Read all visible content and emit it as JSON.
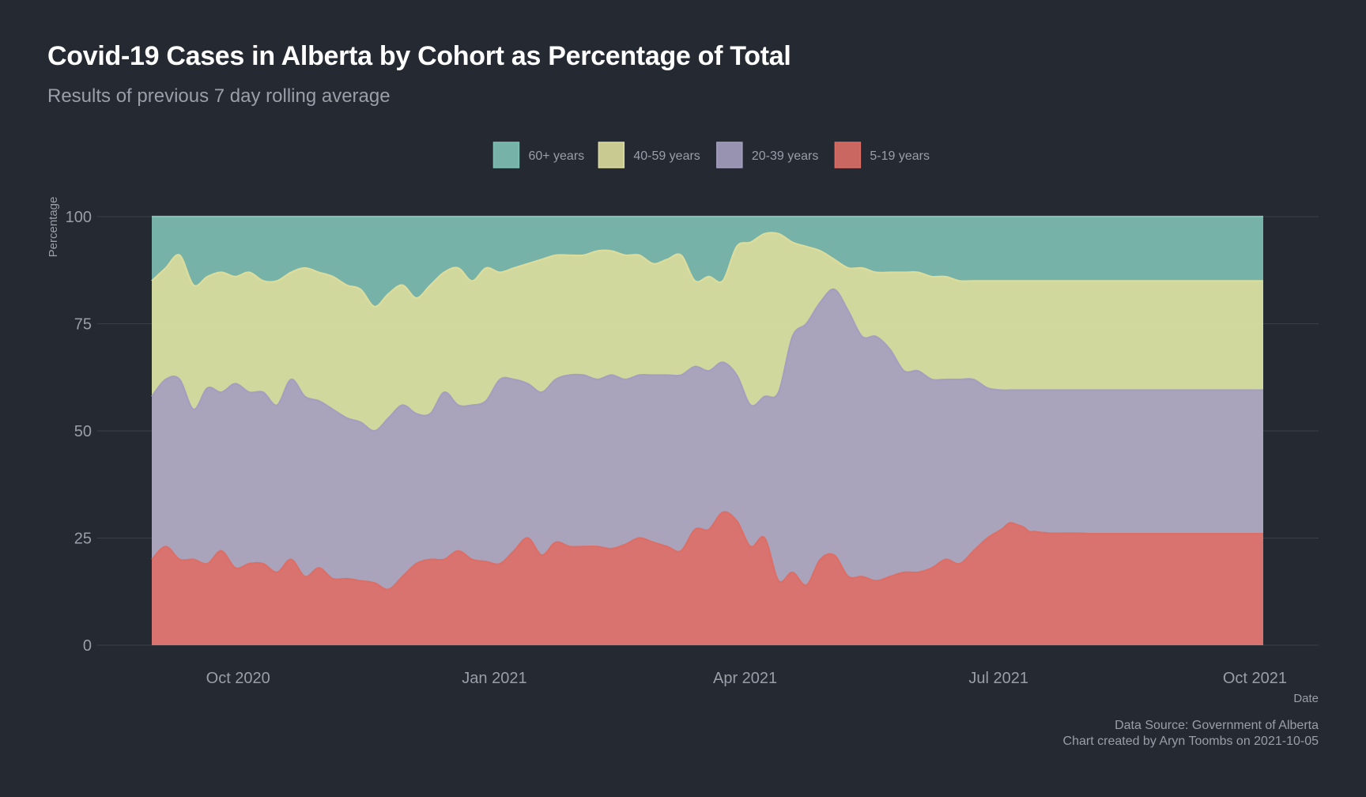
{
  "title": "Covid-19 Cases in Alberta by Cohort as Percentage of Total",
  "subtitle": "Results of previous 7 day rolling average",
  "caption": {
    "line1": "Data Source: Government of Alberta",
    "line2": "Chart created by Aryn Toombs on 2021-10-05"
  },
  "chart_data": {
    "type": "area",
    "stacked": true,
    "title": "Covid-19 Cases in Alberta by Cohort as Percentage of Total",
    "subtitle": "Results of previous 7 day rolling average",
    "xlabel": "Date",
    "ylabel": "Percentage",
    "x_range": [
      "2020-08-31",
      "2021-10-04"
    ],
    "ylim": [
      0,
      100
    ],
    "xticks": [
      {
        "date": "2020-10-01",
        "label": "Oct 2020"
      },
      {
        "date": "2021-01-01",
        "label": "Jan 2021"
      },
      {
        "date": "2021-04-01",
        "label": "Apr 2021"
      },
      {
        "date": "2021-07-01",
        "label": "Jul 2021"
      },
      {
        "date": "2021-10-01",
        "label": "Oct 2021"
      }
    ],
    "yticks": [
      0,
      25,
      50,
      75,
      100
    ],
    "grid": true,
    "legend_position": "top",
    "legend": [
      {
        "name": "60+ years",
        "color": "#7fc1b5"
      },
      {
        "name": "40-59 years",
        "color": "#dcdc9c"
      },
      {
        "name": "20-39 years",
        "color": "#a49fbf"
      },
      {
        "name": "5-19 years",
        "color": "#dd6e66"
      }
    ],
    "x": [
      "2020-08-31",
      "2020-09-05",
      "2020-09-10",
      "2020-09-15",
      "2020-09-20",
      "2020-09-25",
      "2020-09-30",
      "2020-10-05",
      "2020-10-10",
      "2020-10-15",
      "2020-10-20",
      "2020-10-25",
      "2020-10-30",
      "2020-11-04",
      "2020-11-09",
      "2020-11-14",
      "2020-11-19",
      "2020-11-24",
      "2020-11-29",
      "2020-12-04",
      "2020-12-09",
      "2020-12-14",
      "2020-12-19",
      "2020-12-24",
      "2020-12-29",
      "2021-01-03",
      "2021-01-08",
      "2021-01-13",
      "2021-01-18",
      "2021-01-23",
      "2021-01-28",
      "2021-02-02",
      "2021-02-07",
      "2021-02-12",
      "2021-02-17",
      "2021-02-22",
      "2021-02-27",
      "2021-03-04",
      "2021-03-09",
      "2021-03-14",
      "2021-03-19",
      "2021-03-24",
      "2021-03-29",
      "2021-04-03",
      "2021-04-08",
      "2021-04-13",
      "2021-04-18",
      "2021-04-23",
      "2021-04-28",
      "2021-05-03",
      "2021-05-08",
      "2021-05-13",
      "2021-05-18",
      "2021-05-23",
      "2021-05-28",
      "2021-06-02",
      "2021-06-07",
      "2021-06-12",
      "2021-06-17",
      "2021-06-22",
      "2021-06-27",
      "2021-07-02",
      "2021-07-05",
      "2021-07-08",
      "2021-07-10",
      "2021-07-12",
      "2021-07-14",
      "2021-07-16",
      "2021-07-18",
      "2021-07-20",
      "2021-07-25",
      "2021-07-30",
      "2021-08-04",
      "2021-08-09",
      "2021-08-14",
      "2021-08-19",
      "2021-08-24",
      "2021-08-29",
      "2021-09-03",
      "2021-09-08",
      "2021-09-13",
      "2021-09-18",
      "2021-09-23",
      "2021-09-28",
      "2021-10-04"
    ],
    "series": [
      {
        "name": "5-19 years",
        "color": "#dd6e66",
        "values": [
          20,
          23,
          20,
          20,
          19,
          22,
          18,
          19,
          19,
          17,
          20,
          16,
          18,
          15.5,
          15.5,
          15,
          14.5,
          13,
          16,
          19,
          20,
          20,
          22,
          20,
          19.5,
          19,
          22,
          25,
          21,
          24,
          23,
          23,
          23,
          22.5,
          23.5,
          25,
          24,
          23,
          22,
          27,
          27,
          31,
          29,
          23,
          25,
          15,
          17,
          14,
          20,
          21,
          16,
          16,
          15,
          16,
          17,
          17,
          18,
          20,
          19,
          22,
          25,
          27,
          28.5,
          28,
          27.5,
          26.5,
          26.5,
          26.3,
          26.2,
          26.1,
          26.1,
          26.1,
          26,
          26,
          26,
          26,
          26,
          26,
          26,
          26,
          26,
          26,
          26,
          26,
          26
        ]
      },
      {
        "name": "20-39 years",
        "color": "#a49fbf",
        "values": [
          58,
          62,
          62,
          55,
          60,
          59,
          61,
          59,
          59,
          56,
          62,
          58,
          57,
          55,
          53,
          52,
          50,
          53,
          56,
          54,
          54,
          59,
          56,
          56,
          57,
          62,
          62,
          61,
          59,
          62,
          63,
          63,
          62,
          63,
          62,
          63,
          63,
          63,
          63,
          65,
          64,
          66,
          63,
          56,
          58,
          59,
          72,
          75,
          80,
          83,
          78,
          72,
          72,
          69,
          64,
          64,
          62,
          62,
          62,
          62,
          60,
          59.5,
          59.5,
          59.5,
          59.5,
          59.5,
          59.5,
          59.5,
          59.5,
          59.5,
          59.5,
          59.5,
          59.5,
          59.5,
          59.5,
          59.5,
          59.5,
          59.5,
          59.5,
          59.5,
          59.5,
          59.5,
          59.5,
          59.5,
          59.5
        ]
      },
      {
        "name": "40-59 years",
        "color": "#dcdc9c",
        "values": [
          85,
          88,
          91,
          84,
          86,
          87,
          86,
          87,
          85,
          85,
          87,
          88,
          87,
          86,
          84,
          83,
          79,
          82,
          84,
          81,
          84,
          87,
          88,
          85,
          88,
          87,
          88,
          89,
          90,
          91,
          91,
          91,
          92,
          92,
          91,
          91,
          89,
          90,
          91,
          85,
          86,
          85,
          93,
          94,
          96,
          96,
          94,
          93,
          92,
          90,
          88,
          88,
          87,
          87,
          87,
          87,
          86,
          86,
          85,
          85,
          85,
          85,
          85,
          85,
          85,
          85,
          85,
          85,
          85,
          85,
          85,
          85,
          85,
          85,
          85,
          85,
          85,
          85,
          85,
          85,
          85,
          85,
          85,
          85,
          85
        ]
      },
      {
        "name": "60+ years",
        "color": "#7fc1b5",
        "values": [
          100,
          100,
          100,
          100,
          100,
          100,
          100,
          100,
          100,
          100,
          100,
          100,
          100,
          100,
          100,
          100,
          100,
          100,
          100,
          100,
          100,
          100,
          100,
          100,
          100,
          100,
          100,
          100,
          100,
          100,
          100,
          100,
          100,
          100,
          100,
          100,
          100,
          100,
          100,
          100,
          100,
          100,
          100,
          100,
          100,
          100,
          100,
          100,
          100,
          100,
          100,
          100,
          100,
          100,
          100,
          100,
          100,
          100,
          100,
          100,
          100,
          100,
          100,
          100,
          100,
          100,
          100,
          100,
          100,
          100,
          100,
          100,
          100,
          100,
          100,
          100,
          100,
          100,
          100,
          100,
          100,
          100,
          100,
          100,
          100
        ]
      }
    ]
  }
}
